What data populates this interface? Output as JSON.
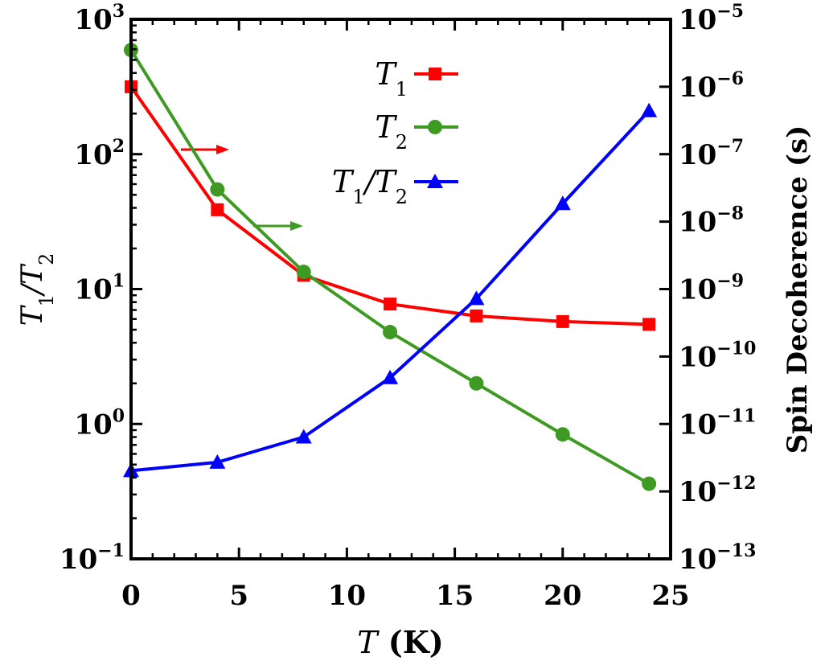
{
  "chart_data": {
    "type": "line",
    "title": "",
    "xlabel": "T (K)",
    "ylabel_left": "T1/T2",
    "ylabel_right": "Spin Decoherence (s)",
    "xlim": [
      0,
      25
    ],
    "ylim_left": [
      0.1,
      1000
    ],
    "ylim_right": [
      1e-13,
      1e-05
    ],
    "log_y_left": true,
    "log_y_right": true,
    "grid": false,
    "legend_position": "top-center",
    "x_ticks": [
      {
        "value": 0,
        "label": "0"
      },
      {
        "value": 5,
        "label": "5"
      },
      {
        "value": 10,
        "label": "10"
      },
      {
        "value": 15,
        "label": "15"
      },
      {
        "value": 20,
        "label": "20"
      },
      {
        "value": 25,
        "label": "25"
      }
    ],
    "left_ticks": [
      {
        "exp": -1,
        "base": "10",
        "sup": "−1"
      },
      {
        "exp": 0,
        "base": "10",
        "sup": "0"
      },
      {
        "exp": 1,
        "base": "10",
        "sup": "1"
      },
      {
        "exp": 2,
        "base": "10",
        "sup": "2"
      },
      {
        "exp": 3,
        "base": "10",
        "sup": "3"
      }
    ],
    "right_ticks": [
      {
        "exp": -13,
        "base": "10",
        "sup": "−13"
      },
      {
        "exp": -12,
        "base": "10",
        "sup": "−12"
      },
      {
        "exp": -11,
        "base": "10",
        "sup": "−11"
      },
      {
        "exp": -10,
        "base": "10",
        "sup": "−10"
      },
      {
        "exp": -9,
        "base": "10",
        "sup": "−9"
      },
      {
        "exp": -8,
        "base": "10",
        "sup": "−8"
      },
      {
        "exp": -7,
        "base": "10",
        "sup": "−7"
      },
      {
        "exp": -6,
        "base": "10",
        "sup": "−6"
      },
      {
        "exp": -5,
        "base": "10",
        "sup": "−5"
      }
    ],
    "series": [
      {
        "name": "T1",
        "legend_main": "T",
        "legend_sub": "1",
        "axis": "right",
        "color": "#ff0000",
        "marker": "square",
        "x": [
          0,
          4,
          8,
          12,
          16,
          20,
          24
        ],
        "y": [
          1e-06,
          1.5e-08,
          1.6e-09,
          6e-10,
          4e-10,
          3.3e-10,
          3e-10
        ]
      },
      {
        "name": "T2",
        "legend_main": "T",
        "legend_sub": "2",
        "axis": "right",
        "color": "#3e9a23",
        "marker": "circle",
        "x": [
          0,
          4,
          8,
          12,
          16,
          20,
          24
        ],
        "y": [
          3.5e-06,
          3e-08,
          1.8e-09,
          2.3e-10,
          4e-11,
          7e-12,
          1.3e-12
        ]
      },
      {
        "name": "T1/T2",
        "legend_main": "T",
        "legend_sub": "1",
        "legend_main2": "/T",
        "legend_sub2": "2",
        "axis": "left",
        "color": "#0000ff",
        "marker": "triangle",
        "x": [
          0,
          4,
          8,
          12,
          16,
          20,
          24
        ],
        "y": [
          0.45,
          0.52,
          0.8,
          2.2,
          8.5,
          43,
          210
        ]
      }
    ],
    "annotations": [
      {
        "type": "arrow",
        "color": "#ff0000",
        "points_to": "right axis"
      },
      {
        "type": "arrow",
        "color": "#3e9a23",
        "points_to": "right axis"
      }
    ]
  }
}
